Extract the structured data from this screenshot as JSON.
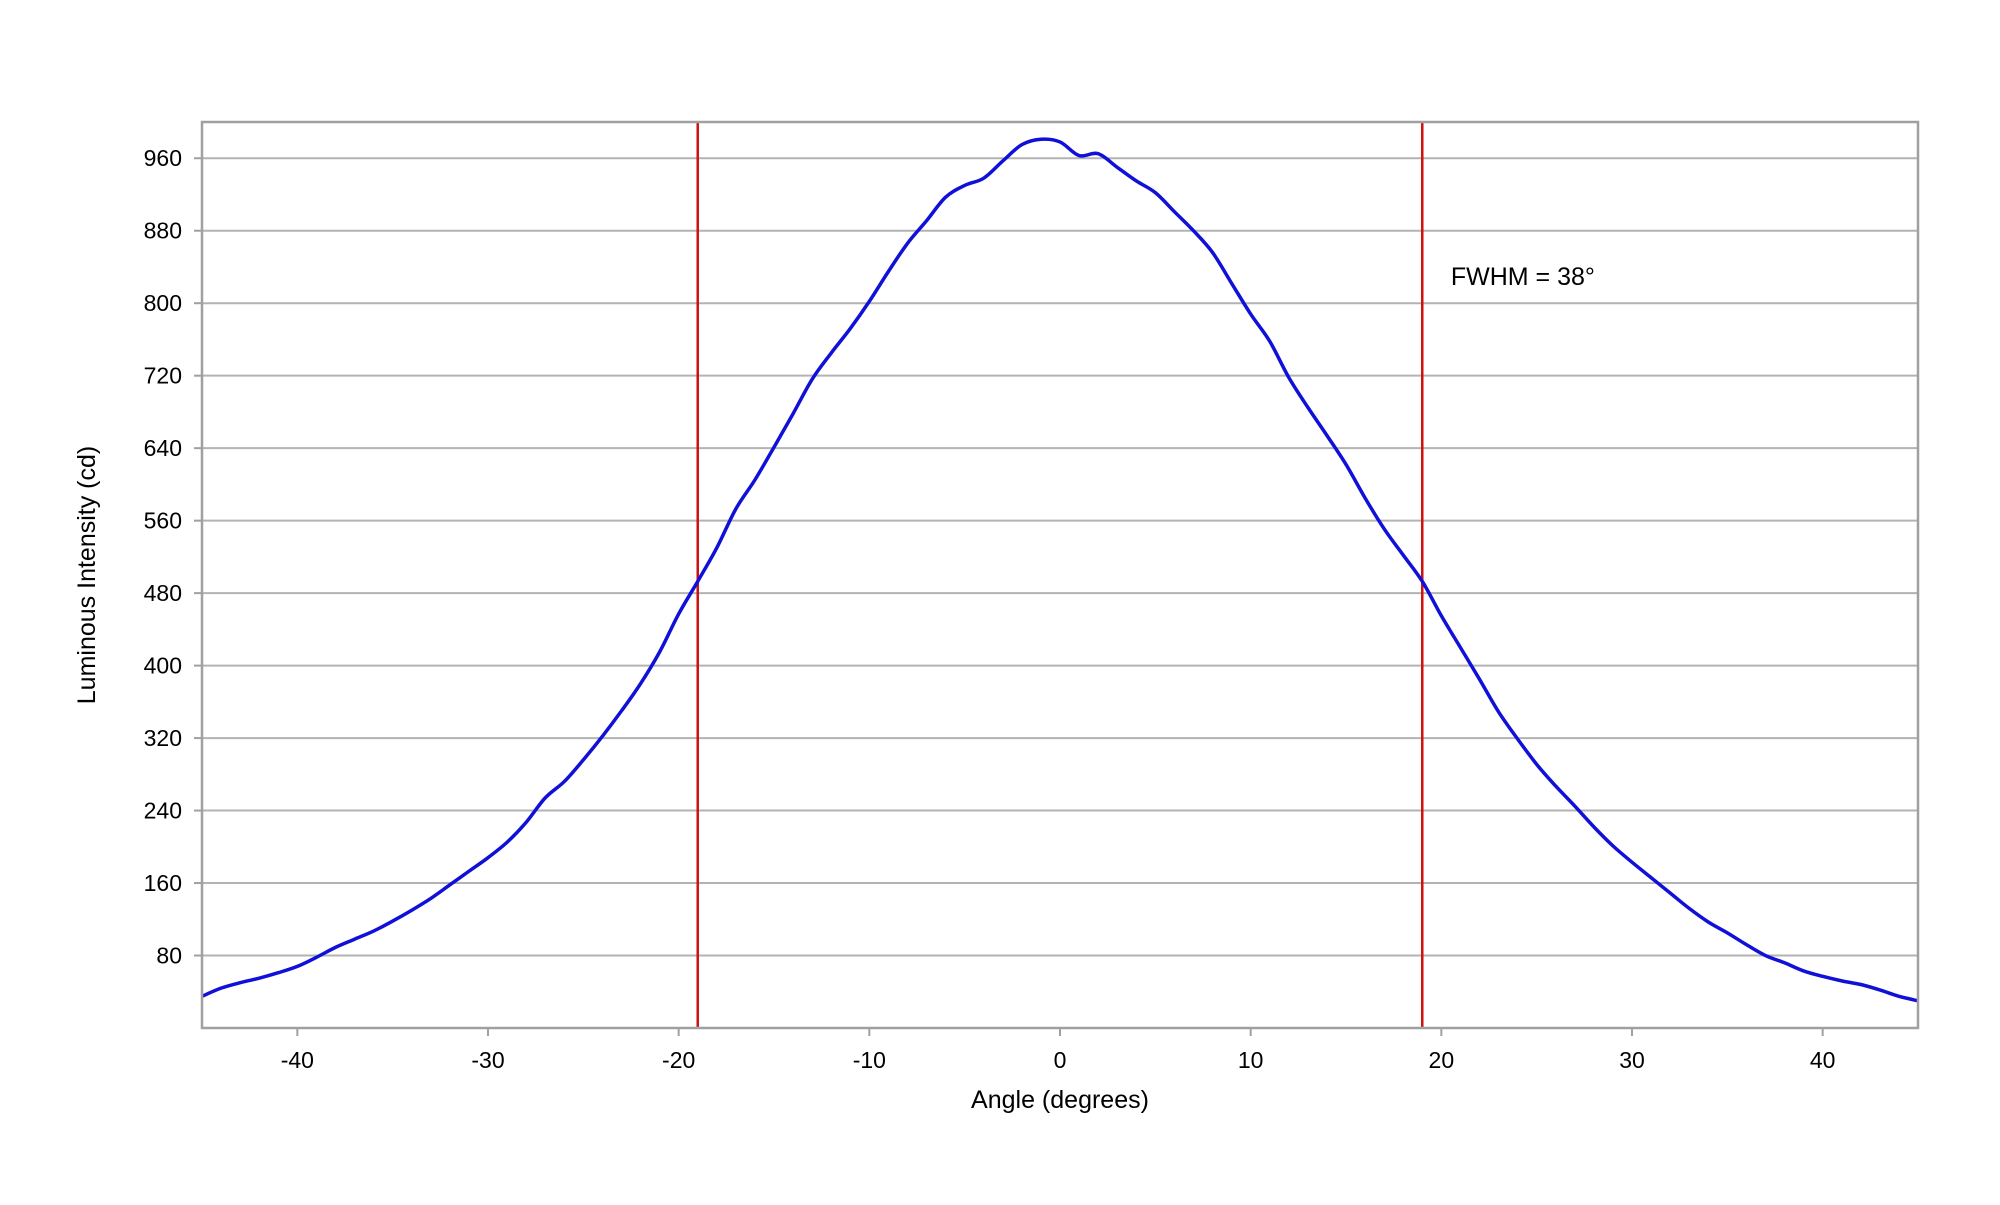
{
  "colors": {
    "background": "#ffffff",
    "grid": "#b3b3b3",
    "frame": "#a0a0a0",
    "curve": "#1010d8",
    "marker": "#cc1111"
  },
  "chart_data": {
    "type": "line",
    "title": "",
    "xlabel": "Angle (degrees)",
    "ylabel": "Luminous Intensity (cd)",
    "xlim": [
      -45,
      45
    ],
    "ylim": [
      0,
      1000
    ],
    "x_ticks": [
      -40,
      -30,
      -20,
      -10,
      0,
      10,
      20,
      30,
      40
    ],
    "y_ticks": [
      80,
      160,
      240,
      320,
      400,
      480,
      560,
      640,
      720,
      800,
      880,
      960
    ],
    "grid": "horizontal",
    "legend": "none",
    "series": [
      {
        "x": [
          -45,
          -44,
          -43,
          -42,
          -41,
          -40,
          -39,
          -38,
          -37,
          -36,
          -35,
          -34,
          -33,
          -32,
          -31,
          -30,
          -29,
          -28,
          -27,
          -26,
          -25,
          -24,
          -23,
          -22,
          -21,
          -20,
          -19,
          -18,
          -17,
          -16,
          -15,
          -14,
          -13,
          -12,
          -11,
          -10,
          -9,
          -8,
          -7,
          -6,
          -5,
          -4,
          -3,
          -2,
          -1,
          0,
          1,
          2,
          3,
          4,
          5,
          6,
          7,
          8,
          9,
          10,
          11,
          12,
          13,
          14,
          15,
          16,
          17,
          18,
          19,
          20,
          21,
          22,
          23,
          24,
          25,
          26,
          27,
          28,
          29,
          30,
          31,
          32,
          33,
          34,
          35,
          36,
          37,
          38,
          39,
          40,
          41,
          42,
          43,
          44,
          45
        ],
        "y": [
          35,
          44,
          50,
          55,
          61,
          68,
          78,
          89,
          98,
          107,
          118,
          130,
          143,
          158,
          173,
          188,
          205,
          227,
          254,
          272,
          296,
          322,
          350,
          380,
          415,
          457,
          493,
          530,
          573,
          605,
          641,
          678,
          716,
          745,
          772,
          802,
          835,
          866,
          891,
          917,
          930,
          938,
          957,
          975,
          981,
          978,
          963,
          965,
          950,
          935,
          922,
          901,
          880,
          856,
          822,
          788,
          758,
          718,
          685,
          654,
          622,
          585,
          551,
          522,
          493,
          455,
          420,
          385,
          349,
          319,
          291,
          267,
          245,
          222,
          201,
          183,
          166,
          149,
          132,
          117,
          105,
          92,
          80,
          72,
          63,
          57,
          52,
          48,
          42,
          35,
          30
        ]
      }
    ],
    "markers": [
      {
        "type": "vertical-line",
        "x": -19
      },
      {
        "type": "vertical-line",
        "x": 19
      }
    ],
    "annotations": [
      {
        "text": "FWHM = 38°",
        "x": 20.5,
        "y": 830
      }
    ]
  }
}
